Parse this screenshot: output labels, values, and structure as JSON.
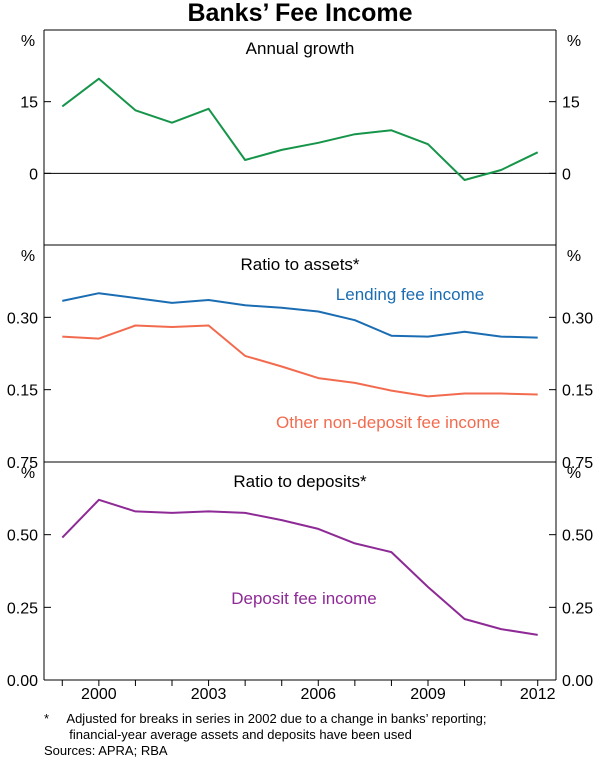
{
  "chart_data": {
    "type": "line",
    "title": "Banks’ Fee Income",
    "x_ticks": [
      "2000",
      "2003",
      "2006",
      "2009",
      "2012"
    ],
    "xlim": [
      1998.5,
      2012.5
    ],
    "panels": [
      {
        "id": "growth",
        "title": "Annual growth",
        "unit": "%",
        "ylim": [
          -15,
          30
        ],
        "yticks": [
          0,
          15
        ],
        "ytick_labels": [
          "0",
          "15"
        ],
        "zero_line": true,
        "series": [
          {
            "name": "",
            "color": "#16954a",
            "x": [
              1999,
              2000,
              2001,
              2002,
              2003,
              2004,
              2005,
              2006,
              2007,
              2008,
              2009,
              2010,
              2011,
              2012
            ],
            "y": [
              14,
              19.8,
              13.2,
              10.6,
              13.5,
              2.8,
              4.9,
              6.4,
              8.2,
              9.0,
              6.1,
              -1.4,
              0.7,
              4.4
            ]
          }
        ]
      },
      {
        "id": "assets",
        "title": "Ratio to assets*",
        "unit": "%",
        "ylim": [
          0,
          0.45
        ],
        "yticks": [
          0.15,
          0.3
        ],
        "ytick_labels": [
          "0.15",
          "0.30"
        ],
        "zero_line": false,
        "series": [
          {
            "name": "Lending fee income",
            "color": "#1b6db3",
            "x": [
              1999,
              2000,
              2001,
              2002,
              2003,
              2004,
              2005,
              2006,
              2007,
              2008,
              2009,
              2010,
              2011,
              2012
            ],
            "y": [
              0.334,
              0.35,
              0.34,
              0.33,
              0.336,
              0.325,
              0.32,
              0.312,
              0.294,
              0.262,
              0.26,
              0.27,
              0.26,
              0.258
            ]
          },
          {
            "name": "Other non-deposit fee income",
            "color": "#f26b4f",
            "x": [
              1999,
              2000,
              2001,
              2002,
              2003,
              2004,
              2005,
              2006,
              2007,
              2008,
              2009,
              2010,
              2011,
              2012
            ],
            "y": [
              0.26,
              0.256,
              0.283,
              0.28,
              0.283,
              0.22,
              0.198,
              0.174,
              0.164,
              0.148,
              0.136,
              0.142,
              0.142,
              0.14
            ]
          }
        ]
      },
      {
        "id": "deposits",
        "title": "Ratio to deposits*",
        "unit": "%",
        "ylim": [
          0,
          0.75
        ],
        "yticks": [
          0.0,
          0.25,
          0.5,
          0.75
        ],
        "ytick_labels": [
          "0.00",
          "0.25",
          "0.50",
          "0.75"
        ],
        "zero_line": false,
        "series": [
          {
            "name": "Deposit fee income",
            "color": "#8e2a96",
            "x": [
              1999,
              2000,
              2001,
              2002,
              2003,
              2004,
              2005,
              2006,
              2007,
              2008,
              2009,
              2010,
              2011,
              2012
            ],
            "y": [
              0.49,
              0.62,
              0.58,
              0.575,
              0.58,
              0.575,
              0.55,
              0.52,
              0.47,
              0.44,
              0.32,
              0.21,
              0.175,
              0.155
            ]
          }
        ]
      }
    ],
    "footnote_lines": [
      "*     Adjusted for breaks in series in 2002 due to a change in banks’ reporting;",
      "       financial-year average assets and deposits have been used"
    ],
    "sources": "Sources: APRA; RBA"
  }
}
